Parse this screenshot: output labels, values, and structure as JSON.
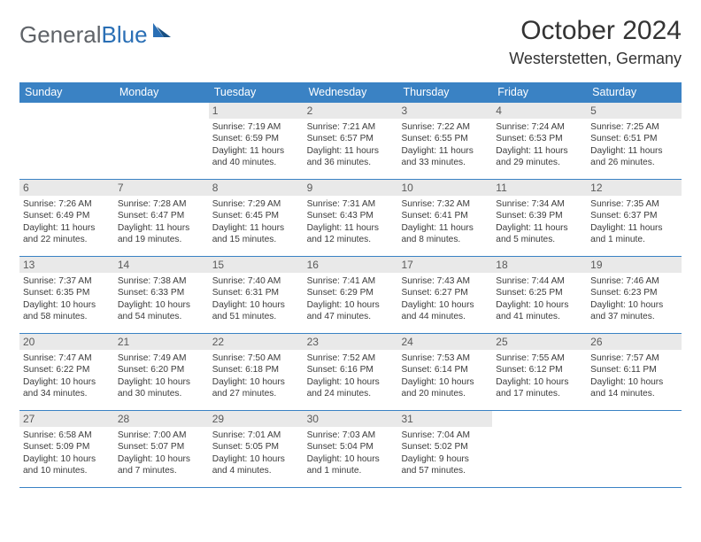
{
  "brand": {
    "part1": "General",
    "part2": "Blue"
  },
  "title": "October 2024",
  "location": "Westerstetten, Germany",
  "colors": {
    "header_bg": "#3a82c4",
    "header_text": "#ffffff",
    "daynum_bg": "#e9e9e9",
    "rule": "#3a82c4",
    "brand_gray": "#5f6368",
    "brand_blue": "#2a6fb5",
    "text": "#333333"
  },
  "weekdays": [
    "Sunday",
    "Monday",
    "Tuesday",
    "Wednesday",
    "Thursday",
    "Friday",
    "Saturday"
  ],
  "weeks": [
    [
      null,
      null,
      {
        "n": "1",
        "sr": "Sunrise: 7:19 AM",
        "ss": "Sunset: 6:59 PM",
        "d1": "Daylight: 11 hours",
        "d2": "and 40 minutes."
      },
      {
        "n": "2",
        "sr": "Sunrise: 7:21 AM",
        "ss": "Sunset: 6:57 PM",
        "d1": "Daylight: 11 hours",
        "d2": "and 36 minutes."
      },
      {
        "n": "3",
        "sr": "Sunrise: 7:22 AM",
        "ss": "Sunset: 6:55 PM",
        "d1": "Daylight: 11 hours",
        "d2": "and 33 minutes."
      },
      {
        "n": "4",
        "sr": "Sunrise: 7:24 AM",
        "ss": "Sunset: 6:53 PM",
        "d1": "Daylight: 11 hours",
        "d2": "and 29 minutes."
      },
      {
        "n": "5",
        "sr": "Sunrise: 7:25 AM",
        "ss": "Sunset: 6:51 PM",
        "d1": "Daylight: 11 hours",
        "d2": "and 26 minutes."
      }
    ],
    [
      {
        "n": "6",
        "sr": "Sunrise: 7:26 AM",
        "ss": "Sunset: 6:49 PM",
        "d1": "Daylight: 11 hours",
        "d2": "and 22 minutes."
      },
      {
        "n": "7",
        "sr": "Sunrise: 7:28 AM",
        "ss": "Sunset: 6:47 PM",
        "d1": "Daylight: 11 hours",
        "d2": "and 19 minutes."
      },
      {
        "n": "8",
        "sr": "Sunrise: 7:29 AM",
        "ss": "Sunset: 6:45 PM",
        "d1": "Daylight: 11 hours",
        "d2": "and 15 minutes."
      },
      {
        "n": "9",
        "sr": "Sunrise: 7:31 AM",
        "ss": "Sunset: 6:43 PM",
        "d1": "Daylight: 11 hours",
        "d2": "and 12 minutes."
      },
      {
        "n": "10",
        "sr": "Sunrise: 7:32 AM",
        "ss": "Sunset: 6:41 PM",
        "d1": "Daylight: 11 hours",
        "d2": "and 8 minutes."
      },
      {
        "n": "11",
        "sr": "Sunrise: 7:34 AM",
        "ss": "Sunset: 6:39 PM",
        "d1": "Daylight: 11 hours",
        "d2": "and 5 minutes."
      },
      {
        "n": "12",
        "sr": "Sunrise: 7:35 AM",
        "ss": "Sunset: 6:37 PM",
        "d1": "Daylight: 11 hours",
        "d2": "and 1 minute."
      }
    ],
    [
      {
        "n": "13",
        "sr": "Sunrise: 7:37 AM",
        "ss": "Sunset: 6:35 PM",
        "d1": "Daylight: 10 hours",
        "d2": "and 58 minutes."
      },
      {
        "n": "14",
        "sr": "Sunrise: 7:38 AM",
        "ss": "Sunset: 6:33 PM",
        "d1": "Daylight: 10 hours",
        "d2": "and 54 minutes."
      },
      {
        "n": "15",
        "sr": "Sunrise: 7:40 AM",
        "ss": "Sunset: 6:31 PM",
        "d1": "Daylight: 10 hours",
        "d2": "and 51 minutes."
      },
      {
        "n": "16",
        "sr": "Sunrise: 7:41 AM",
        "ss": "Sunset: 6:29 PM",
        "d1": "Daylight: 10 hours",
        "d2": "and 47 minutes."
      },
      {
        "n": "17",
        "sr": "Sunrise: 7:43 AM",
        "ss": "Sunset: 6:27 PM",
        "d1": "Daylight: 10 hours",
        "d2": "and 44 minutes."
      },
      {
        "n": "18",
        "sr": "Sunrise: 7:44 AM",
        "ss": "Sunset: 6:25 PM",
        "d1": "Daylight: 10 hours",
        "d2": "and 41 minutes."
      },
      {
        "n": "19",
        "sr": "Sunrise: 7:46 AM",
        "ss": "Sunset: 6:23 PM",
        "d1": "Daylight: 10 hours",
        "d2": "and 37 minutes."
      }
    ],
    [
      {
        "n": "20",
        "sr": "Sunrise: 7:47 AM",
        "ss": "Sunset: 6:22 PM",
        "d1": "Daylight: 10 hours",
        "d2": "and 34 minutes."
      },
      {
        "n": "21",
        "sr": "Sunrise: 7:49 AM",
        "ss": "Sunset: 6:20 PM",
        "d1": "Daylight: 10 hours",
        "d2": "and 30 minutes."
      },
      {
        "n": "22",
        "sr": "Sunrise: 7:50 AM",
        "ss": "Sunset: 6:18 PM",
        "d1": "Daylight: 10 hours",
        "d2": "and 27 minutes."
      },
      {
        "n": "23",
        "sr": "Sunrise: 7:52 AM",
        "ss": "Sunset: 6:16 PM",
        "d1": "Daylight: 10 hours",
        "d2": "and 24 minutes."
      },
      {
        "n": "24",
        "sr": "Sunrise: 7:53 AM",
        "ss": "Sunset: 6:14 PM",
        "d1": "Daylight: 10 hours",
        "d2": "and 20 minutes."
      },
      {
        "n": "25",
        "sr": "Sunrise: 7:55 AM",
        "ss": "Sunset: 6:12 PM",
        "d1": "Daylight: 10 hours",
        "d2": "and 17 minutes."
      },
      {
        "n": "26",
        "sr": "Sunrise: 7:57 AM",
        "ss": "Sunset: 6:11 PM",
        "d1": "Daylight: 10 hours",
        "d2": "and 14 minutes."
      }
    ],
    [
      {
        "n": "27",
        "sr": "Sunrise: 6:58 AM",
        "ss": "Sunset: 5:09 PM",
        "d1": "Daylight: 10 hours",
        "d2": "and 10 minutes."
      },
      {
        "n": "28",
        "sr": "Sunrise: 7:00 AM",
        "ss": "Sunset: 5:07 PM",
        "d1": "Daylight: 10 hours",
        "d2": "and 7 minutes."
      },
      {
        "n": "29",
        "sr": "Sunrise: 7:01 AM",
        "ss": "Sunset: 5:05 PM",
        "d1": "Daylight: 10 hours",
        "d2": "and 4 minutes."
      },
      {
        "n": "30",
        "sr": "Sunrise: 7:03 AM",
        "ss": "Sunset: 5:04 PM",
        "d1": "Daylight: 10 hours",
        "d2": "and 1 minute."
      },
      {
        "n": "31",
        "sr": "Sunrise: 7:04 AM",
        "ss": "Sunset: 5:02 PM",
        "d1": "Daylight: 9 hours",
        "d2": "and 57 minutes."
      },
      null,
      null
    ]
  ]
}
